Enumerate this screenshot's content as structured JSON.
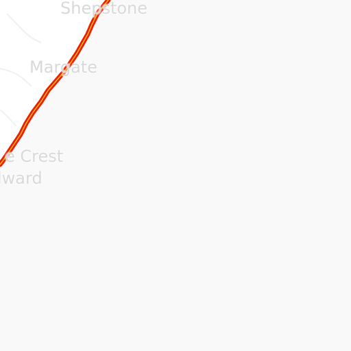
{
  "map": {
    "places": [
      {
        "id": "shepstone",
        "label": "Shepstone"
      },
      {
        "id": "margate",
        "label": "Margate"
      },
      {
        "id": "crest",
        "label": "e Crest"
      },
      {
        "id": "edward",
        "label": "lward"
      }
    ],
    "colors": {
      "sea": "#f9f9f9",
      "land": "#ffffff",
      "coastal_road": "#ee1c00",
      "road_highlight": "#f5c21a",
      "label": "#d9d9d9"
    }
  }
}
